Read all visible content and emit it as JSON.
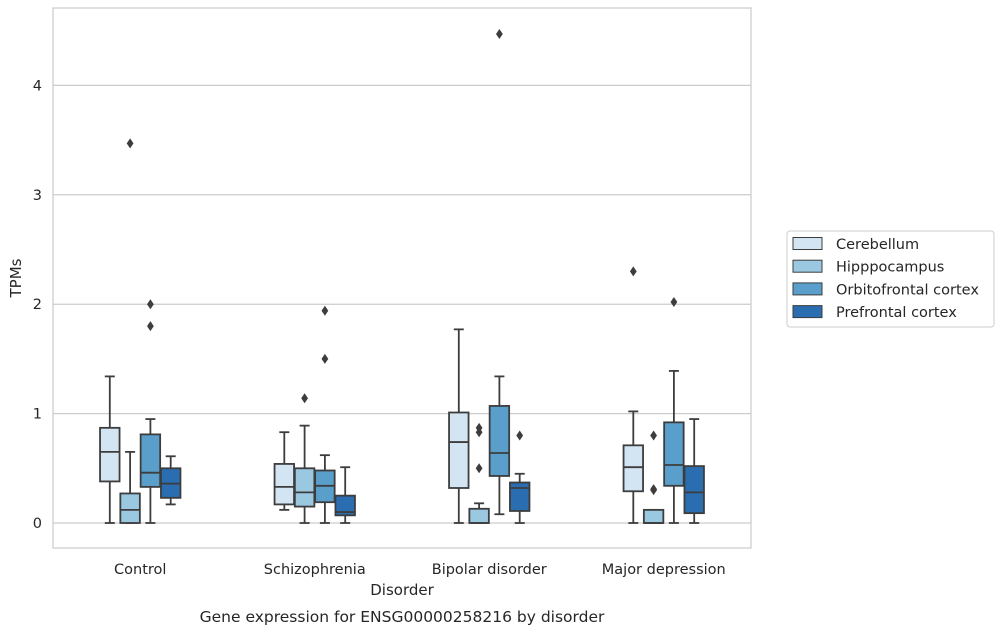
{
  "chart_data": {
    "type": "box",
    "title": "",
    "caption": "Gene expression for ENSG00000258216 by disorder",
    "xlabel": "Disorder",
    "ylabel": "TPMs",
    "ylim": [
      -0.22,
      4.7
    ],
    "yticks": [
      0,
      1,
      2,
      3,
      4
    ],
    "grid": "horizontal",
    "legend_position": "right",
    "categories": [
      "Control",
      "Schizophrenia",
      "Bipolar disorder",
      "Major depression"
    ],
    "series": [
      {
        "name": "Cerebellum",
        "color": "#d3e4f3",
        "boxes": [
          {
            "whisker_low": 0.0,
            "q1": 0.38,
            "median": 0.65,
            "q3": 0.87,
            "whisker_high": 1.34,
            "outliers": []
          },
          {
            "whisker_low": 0.12,
            "q1": 0.17,
            "median": 0.33,
            "q3": 0.54,
            "whisker_high": 0.83,
            "outliers": []
          },
          {
            "whisker_low": 0.0,
            "q1": 0.32,
            "median": 0.74,
            "q3": 1.01,
            "whisker_high": 1.77,
            "outliers": []
          },
          {
            "whisker_low": 0.0,
            "q1": 0.29,
            "median": 0.51,
            "q3": 0.71,
            "whisker_high": 1.02,
            "outliers": [
              2.3
            ]
          }
        ]
      },
      {
        "name": "Hipppocampus",
        "color": "#9ac8e0",
        "boxes": [
          {
            "whisker_low": 0.0,
            "q1": 0.0,
            "median": 0.12,
            "q3": 0.27,
            "whisker_high": 0.65,
            "outliers": [
              3.47
            ]
          },
          {
            "whisker_low": 0.0,
            "q1": 0.15,
            "median": 0.28,
            "q3": 0.5,
            "whisker_high": 0.89,
            "outliers": [
              1.14
            ]
          },
          {
            "whisker_low": 0.0,
            "q1": 0.0,
            "median": 0.0,
            "q3": 0.13,
            "whisker_high": 0.18,
            "outliers": [
              0.5,
              0.83,
              0.87
            ]
          },
          {
            "whisker_low": 0.0,
            "q1": 0.0,
            "median": 0.0,
            "q3": 0.12,
            "whisker_high": 0.12,
            "outliers": [
              0.3,
              0.31,
              0.8
            ]
          }
        ]
      },
      {
        "name": "Orbitofrontal cortex",
        "color": "#5a9ecc",
        "boxes": [
          {
            "whisker_low": 0.0,
            "q1": 0.33,
            "median": 0.46,
            "q3": 0.81,
            "whisker_high": 0.95,
            "outliers": [
              1.8,
              2.0
            ]
          },
          {
            "whisker_low": 0.0,
            "q1": 0.19,
            "median": 0.34,
            "q3": 0.48,
            "whisker_high": 0.62,
            "outliers": [
              1.5,
              1.94
            ]
          },
          {
            "whisker_low": 0.08,
            "q1": 0.43,
            "median": 0.64,
            "q3": 1.07,
            "whisker_high": 1.34,
            "outliers": [
              4.47
            ]
          },
          {
            "whisker_low": 0.0,
            "q1": 0.34,
            "median": 0.53,
            "q3": 0.92,
            "whisker_high": 1.39,
            "outliers": [
              2.02
            ]
          }
        ]
      },
      {
        "name": "Prefrontal cortex",
        "color": "#2a6db0",
        "boxes": [
          {
            "whisker_low": 0.17,
            "q1": 0.23,
            "median": 0.36,
            "q3": 0.5,
            "whisker_high": 0.61,
            "outliers": []
          },
          {
            "whisker_low": 0.0,
            "q1": 0.07,
            "median": 0.1,
            "q3": 0.25,
            "whisker_high": 0.51,
            "outliers": []
          },
          {
            "whisker_low": 0.0,
            "q1": 0.11,
            "median": 0.32,
            "q3": 0.37,
            "whisker_high": 0.45,
            "outliers": [
              0.8
            ]
          },
          {
            "whisker_low": 0.0,
            "q1": 0.09,
            "median": 0.28,
            "q3": 0.52,
            "whisker_high": 0.95,
            "outliers": []
          }
        ]
      }
    ]
  }
}
